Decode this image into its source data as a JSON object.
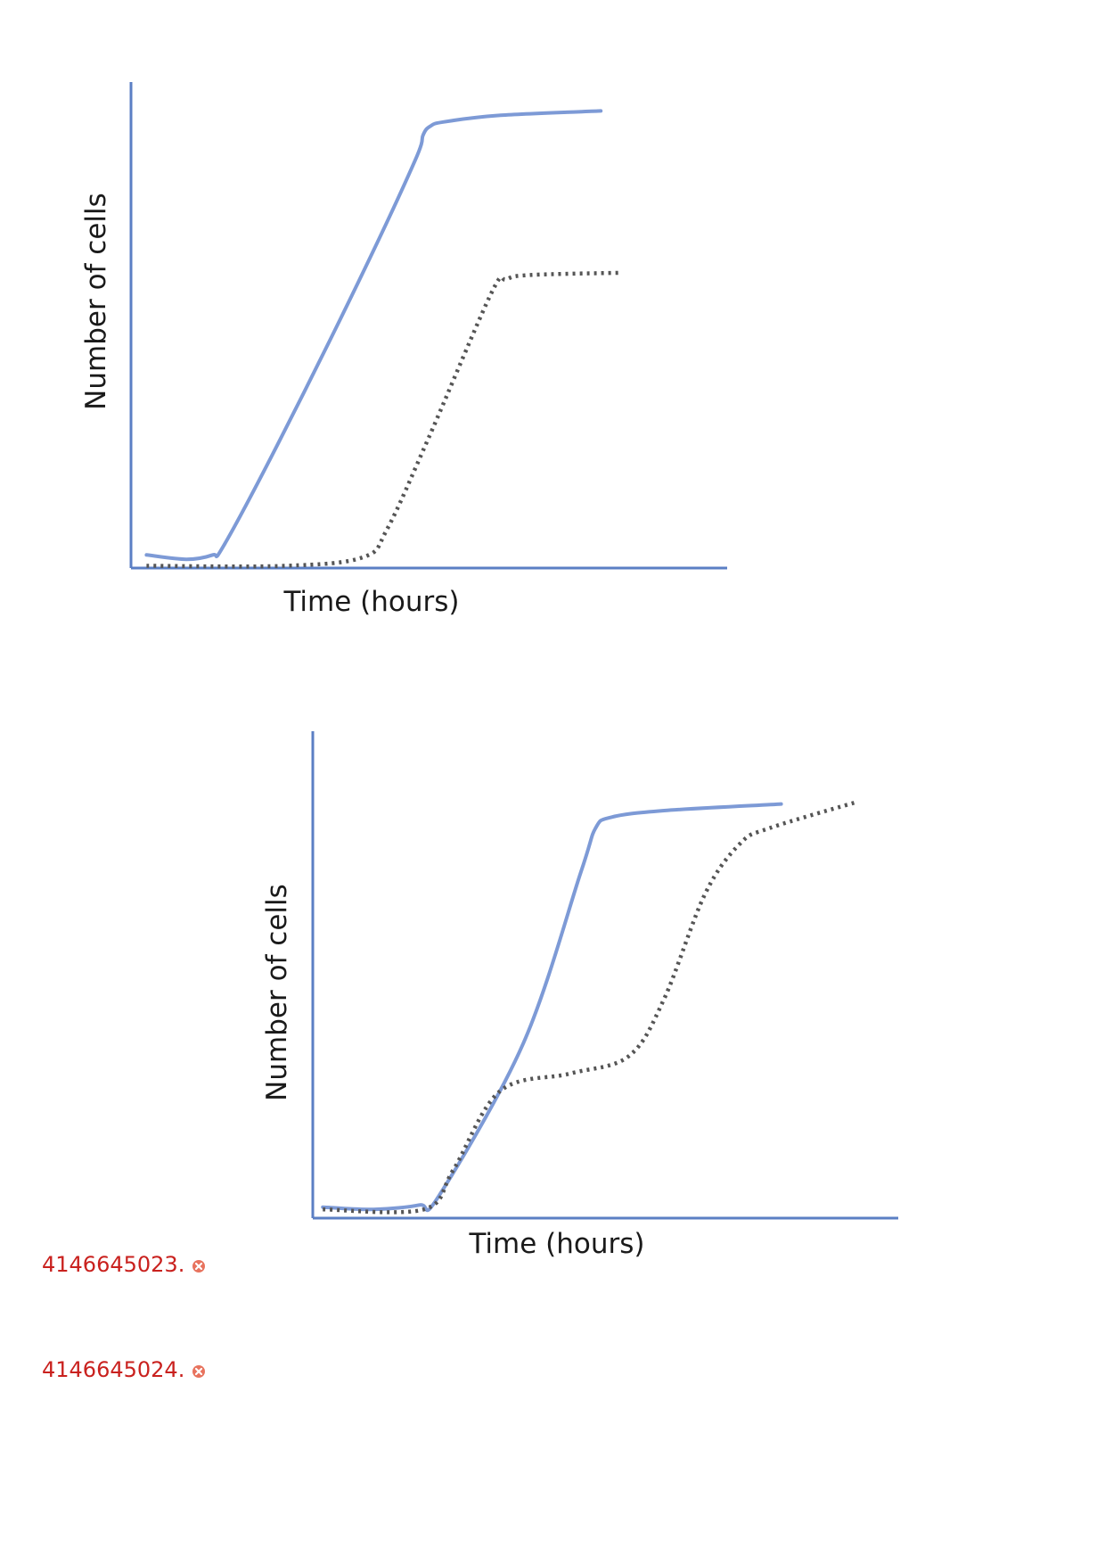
{
  "chart_data": [
    {
      "type": "line",
      "title": "",
      "xlabel": "Time (hours)",
      "ylabel": "Number of cells",
      "xlim": [
        0,
        10
      ],
      "ylim": [
        0,
        10
      ],
      "grid": false,
      "legend": "none",
      "series": [
        {
          "style": "solid",
          "color": "#7d9ad6",
          "x": [
            0.26,
            0.93,
            1.37,
            1.55,
            2.45,
            3.8,
            4.76,
            4.9,
            5.02,
            5.25,
            6.2,
            7.88
          ],
          "y": [
            0.3,
            0.2,
            0.3,
            0.5,
            2.8,
            6.5,
            9.3,
            9.9,
            10.1,
            10.2,
            10.35,
            10.45
          ]
        },
        {
          "style": "dotted",
          "color": "#555555",
          "x": [
            0.26,
            2.6,
            3.9,
            4.3,
            5.0,
            6.05,
            6.3,
            6.7,
            8.2
          ],
          "y": [
            0.05,
            0.05,
            0.25,
            0.9,
            3.0,
            6.3,
            6.6,
            6.7,
            6.75
          ]
        }
      ]
    },
    {
      "type": "line",
      "title": "",
      "xlabel": "Time (hours)",
      "ylabel": "Number of cells",
      "xlim": [
        0,
        10
      ],
      "ylim": [
        0,
        10
      ],
      "grid": false,
      "legend": "none",
      "series": [
        {
          "style": "solid",
          "color": "#7d9ad6",
          "x": [
            0.17,
            1.04,
            1.82,
            2.15,
            3.6,
            4.58,
            4.83,
            5.1,
            6.0,
            8.0
          ],
          "y": [
            0.25,
            0.2,
            0.3,
            0.5,
            4.0,
            7.9,
            8.9,
            9.15,
            9.3,
            9.45
          ]
        },
        {
          "style": "dotted",
          "color": "#555555",
          "x": [
            0.17,
            1.9,
            2.4,
            3.2,
            4.4,
            5.4,
            6.0,
            6.7,
            7.3,
            7.8,
            9.3
          ],
          "y": [
            0.2,
            0.2,
            1.1,
            2.9,
            3.3,
            3.7,
            5.0,
            7.4,
            8.55,
            8.9,
            9.5
          ]
        }
      ]
    }
  ],
  "answers": [
    {
      "text": "4146645023.",
      "status_icon": "wrong-icon",
      "status_color": "#e8735e"
    },
    {
      "text": "4146645024.",
      "status_icon": "wrong-icon",
      "status_color": "#e8735e"
    }
  ]
}
